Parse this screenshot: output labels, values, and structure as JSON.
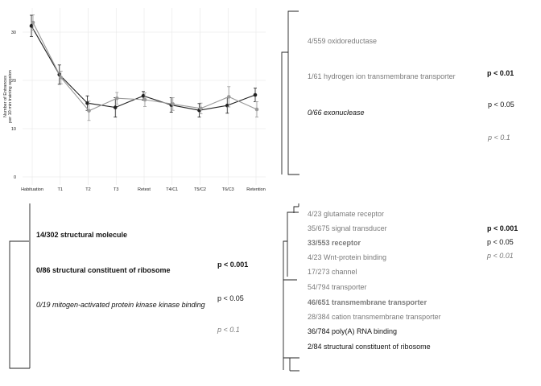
{
  "chart_data": [
    {
      "type": "line",
      "ylabel": "Number of Entrances\nper 10 min training session",
      "categories": [
        "Habituation",
        "T1",
        "T2",
        "T3",
        "Retest",
        "T4/C1",
        "T5/C2",
        "T6/C3",
        "Retention"
      ],
      "ylim": [
        0,
        35
      ],
      "yticks": [
        0,
        10,
        20,
        30
      ],
      "grid": true,
      "series": [
        {
          "color": "#222222",
          "values": [
            31.3,
            21.2,
            15.3,
            14.4,
            16.8,
            14.9,
            13.8,
            14.8,
            17.0
          ],
          "errors": [
            2.2,
            2.0,
            1.5,
            2.0,
            0.9,
            1.5,
            1.4,
            1.6,
            1.4
          ]
        },
        {
          "color": "#9a9a9a",
          "values": [
            32.0,
            20.6,
            13.7,
            16.3,
            16.0,
            15.1,
            14.2,
            16.6,
            14.0
          ],
          "errors": [
            1.6,
            1.3,
            2.0,
            1.2,
            1.4,
            1.3,
            1.1,
            2.1,
            1.6
          ]
        }
      ]
    }
  ],
  "panels": [
    {
      "id": "top-right",
      "terms": [
        {
          "text": "4/559 oxidoreductase",
          "style": "grey"
        },
        {
          "text": "1/61 hydrogen ion transmembrane transporter",
          "style": "grey"
        },
        {
          "text": "0/66 exonuclease",
          "style": "black-italic"
        }
      ],
      "legend": [
        {
          "text": "p < 0.01",
          "style": "black-bold"
        },
        {
          "text": "p < 0.05",
          "style": "black"
        },
        {
          "text": "p < 0.1",
          "style": "grey-italic"
        }
      ]
    },
    {
      "id": "bottom-left",
      "terms": [
        {
          "text": "14/302 structural molecule",
          "style": "black-bold"
        },
        {
          "text": "0/86 structural constituent of ribosome",
          "style": "black-bold"
        },
        {
          "text": "0/19 mitogen-activated protein kinase kinase binding",
          "style": "black-italic"
        }
      ],
      "legend": [
        {
          "text": "p < 0.001",
          "style": "black-bold"
        },
        {
          "text": "p < 0.05",
          "style": "black"
        },
        {
          "text": "p < 0.1",
          "style": "grey-italic"
        }
      ]
    },
    {
      "id": "bottom-right",
      "terms": [
        {
          "text": "4/23 glutamate receptor",
          "style": "grey"
        },
        {
          "text": "35/675 signal transducer",
          "style": "grey"
        },
        {
          "text": "33/553 receptor",
          "style": "grey-bold"
        },
        {
          "text": "4/23 Wnt-protein binding",
          "style": "grey"
        },
        {
          "text": "17/273 channel",
          "style": "grey"
        },
        {
          "text": "54/794 transporter",
          "style": "grey"
        },
        {
          "text": "46/651 transmembrane transporter",
          "style": "grey-bold"
        },
        {
          "text": "28/384 cation transmembrane transporter",
          "style": "grey"
        },
        {
          "text": "36/784 poly(A) RNA binding",
          "style": "black"
        },
        {
          "text": "2/84 structural constituent of ribosome",
          "style": "black"
        }
      ],
      "legend": [
        {
          "text": "p < 0.001",
          "style": "black-bold"
        },
        {
          "text": "p < 0.05",
          "style": "black"
        },
        {
          "text": "p < 0.01",
          "style": "grey-italic"
        }
      ]
    }
  ]
}
